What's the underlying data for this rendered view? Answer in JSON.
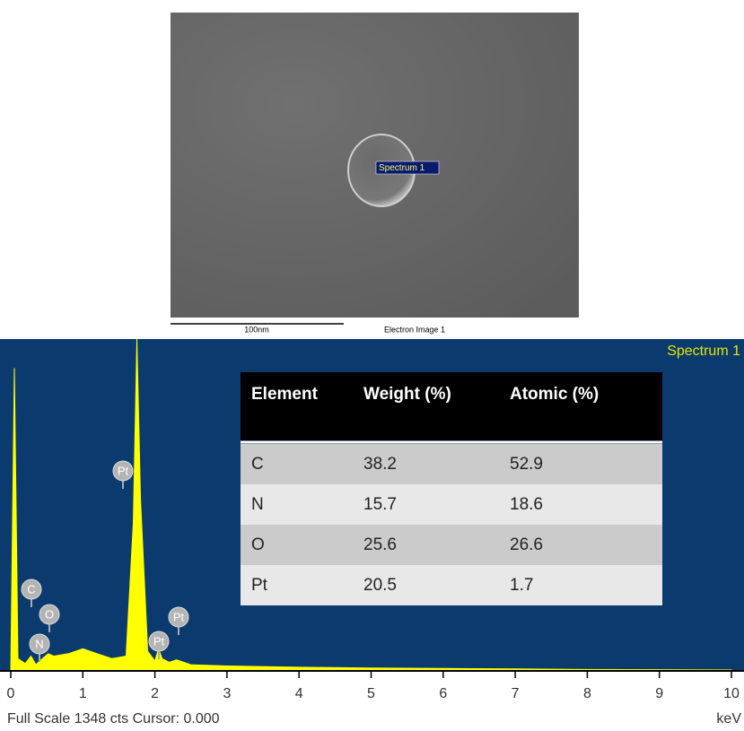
{
  "image": {
    "marker_label": "Spectrum 1",
    "scale_label": "100nm",
    "caption": "Electron Image 1"
  },
  "chart_data": {
    "type": "area",
    "title": "Spectrum 1",
    "x_label": "keV",
    "footer": "Full Scale 1348 cts Cursor: 0.000",
    "x": [
      0,
      0.05,
      0.1,
      0.2,
      0.28,
      0.35,
      0.4,
      0.52,
      0.6,
      0.8,
      1.0,
      1.2,
      1.4,
      1.6,
      1.7,
      1.75,
      1.8,
      1.9,
      2.0,
      2.05,
      2.1,
      2.2,
      2.3,
      2.5,
      3,
      4,
      5,
      6,
      7,
      8,
      9,
      10
    ],
    "values": [
      0,
      1230,
      50,
      30,
      60,
      25,
      40,
      70,
      60,
      70,
      90,
      70,
      50,
      60,
      600,
      1348,
      700,
      80,
      40,
      90,
      50,
      35,
      45,
      25,
      20,
      15,
      12,
      10,
      8,
      6,
      5,
      4
    ],
    "color": "#ffff00",
    "xlim": [
      0,
      10
    ],
    "ylim": [
      0,
      1348
    ],
    "xticks": [
      0,
      1,
      2,
      3,
      4,
      5,
      6,
      7,
      8,
      9,
      10
    ],
    "peak_labels": [
      "C",
      "O",
      "N",
      "Pt",
      "Pt",
      "Pt"
    ]
  },
  "table": {
    "header": [
      "Element",
      "Weight (%)",
      "Atomic (%)"
    ],
    "rows": [
      [
        "C",
        "38.2",
        "52.9"
      ],
      [
        "N",
        "15.7",
        "18.6"
      ],
      [
        "O",
        "25.6",
        "26.6"
      ],
      [
        "Pt",
        "20.5",
        "1.7"
      ]
    ]
  }
}
